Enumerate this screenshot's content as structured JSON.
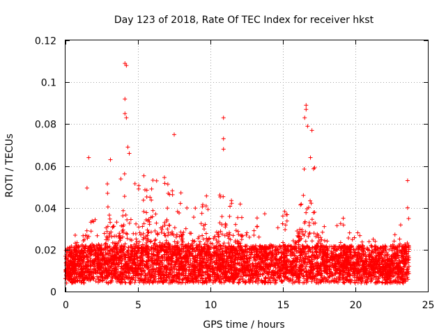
{
  "chart_data": {
    "type": "scatter",
    "title": "Day 123 of 2018, Rate Of TEC Index for receiver hkst",
    "xlabel": "GPS time / hours",
    "ylabel": "ROTI / TECUs",
    "xlim": [
      0,
      25
    ],
    "ylim": [
      0,
      0.12
    ],
    "grid": true,
    "marker": "+",
    "color": "#ff0000",
    "xticks": [
      0,
      5,
      10,
      15,
      20,
      25
    ],
    "xtick_labels": [
      "0",
      "5",
      "10",
      "15",
      "20",
      "25"
    ],
    "yticks": [
      0,
      0.02,
      0.04,
      0.06,
      0.08,
      0.1,
      0.12
    ],
    "ytick_labels": [
      "0",
      "0.02",
      "0.04",
      "0.06",
      "0.08",
      "0.1",
      "0.12"
    ],
    "envelope": {
      "description": "approximate upper envelope of ROTI values (hour, ROTI)",
      "x": [
        0,
        0.5,
        1,
        1.5,
        2,
        2.5,
        3,
        3.5,
        4,
        4.5,
        5,
        5.5,
        6,
        6.5,
        7,
        7.5,
        8,
        8.5,
        9,
        9.5,
        10,
        10.5,
        11,
        11.5,
        12,
        12.5,
        13,
        13.5,
        14,
        14.5,
        15,
        15.5,
        16,
        16.5,
        17,
        17.5,
        18,
        18.5,
        19,
        19.5,
        20,
        20.5,
        21,
        21.5,
        22,
        22.5,
        23,
        23.5
      ],
      "y": [
        0.018,
        0.028,
        0.034,
        0.05,
        0.035,
        0.04,
        0.063,
        0.045,
        0.065,
        0.066,
        0.05,
        0.058,
        0.06,
        0.05,
        0.058,
        0.045,
        0.048,
        0.038,
        0.045,
        0.055,
        0.04,
        0.05,
        0.057,
        0.045,
        0.052,
        0.035,
        0.035,
        0.04,
        0.038,
        0.035,
        0.04,
        0.035,
        0.045,
        0.065,
        0.075,
        0.045,
        0.035,
        0.03,
        0.038,
        0.03,
        0.03,
        0.025,
        0.03,
        0.025,
        0.025,
        0.025,
        0.03,
        0.04
      ]
    },
    "peaks": [
      {
        "x": 4.1,
        "y": 0.109
      },
      {
        "x": 4.2,
        "y": 0.108
      },
      {
        "x": 4.1,
        "y": 0.092
      },
      {
        "x": 4.1,
        "y": 0.085
      },
      {
        "x": 4.2,
        "y": 0.083
      },
      {
        "x": 4.3,
        "y": 0.069
      },
      {
        "x": 4.4,
        "y": 0.066
      },
      {
        "x": 1.6,
        "y": 0.064
      },
      {
        "x": 3.1,
        "y": 0.063
      },
      {
        "x": 7.5,
        "y": 0.075
      },
      {
        "x": 10.9,
        "y": 0.083
      },
      {
        "x": 10.9,
        "y": 0.073
      },
      {
        "x": 10.9,
        "y": 0.068
      },
      {
        "x": 16.6,
        "y": 0.089
      },
      {
        "x": 16.6,
        "y": 0.087
      },
      {
        "x": 16.5,
        "y": 0.083
      },
      {
        "x": 16.7,
        "y": 0.079
      },
      {
        "x": 17.0,
        "y": 0.077
      },
      {
        "x": 16.9,
        "y": 0.064
      },
      {
        "x": 23.6,
        "y": 0.053
      },
      {
        "x": 23.6,
        "y": 0.04
      }
    ]
  }
}
